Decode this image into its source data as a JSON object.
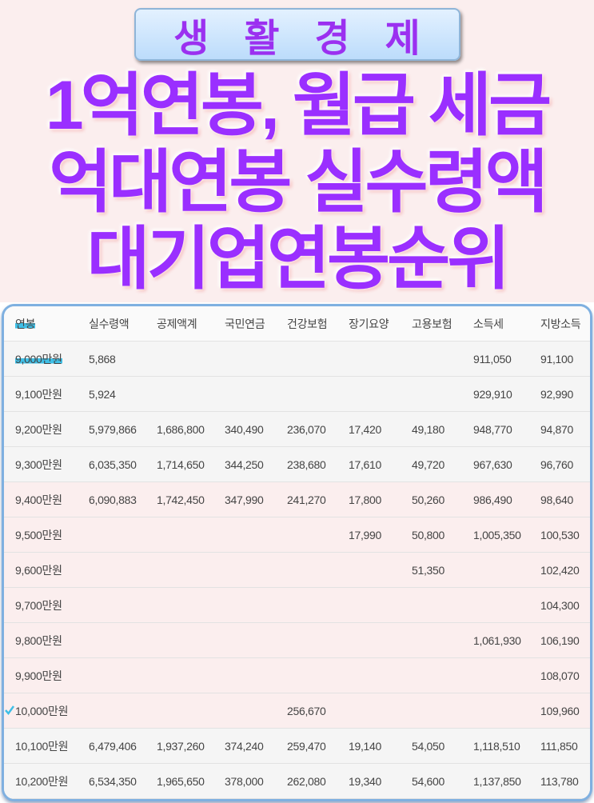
{
  "table": {
    "headers": [
      "연봉",
      "실수령액",
      "공제액계",
      "국민연금",
      "건강보험",
      "장기요양",
      "고용보험",
      "소득세",
      "지방소득"
    ],
    "rows": [
      [
        "9,000만원",
        "5,868",
        "",
        "",
        "",
        "",
        "",
        "911,050",
        "91,100"
      ],
      [
        "9,100만원",
        "5,924",
        "",
        "",
        "",
        "",
        "",
        "929,910",
        "92,990"
      ],
      [
        "9,200만원",
        "5,979,866",
        "1,686,800",
        "340,490",
        "236,070",
        "17,420",
        "49,180",
        "948,770",
        "94,870"
      ],
      [
        "9,300만원",
        "6,035,350",
        "1,714,650",
        "344,250",
        "238,680",
        "17,610",
        "49,720",
        "967,630",
        "96,760"
      ],
      [
        "9,400만원",
        "6,090,883",
        "1,742,450",
        "347,990",
        "241,270",
        "17,800",
        "50,260",
        "986,490",
        "98,640"
      ],
      [
        "9,500만원",
        "",
        "",
        "",
        "",
        "17,990",
        "50,800",
        "1,005,350",
        "100,530"
      ],
      [
        "9,600만원",
        "",
        "",
        "",
        "",
        "",
        "51,350",
        "",
        "102,420"
      ],
      [
        "9,700만원",
        "",
        "",
        "",
        "",
        "",
        "",
        "",
        "104,300"
      ],
      [
        "9,800만원",
        "",
        "",
        "",
        "",
        "",
        "",
        "1,061,930",
        "106,190"
      ],
      [
        "9,900만원",
        "",
        "",
        "",
        "",
        "",
        "",
        "",
        "108,070"
      ],
      [
        "10,000만원",
        "",
        "",
        "",
        "256,670",
        "",
        "",
        "",
        "109,960"
      ],
      [
        "10,100만원",
        "6,479,406",
        "1,937,260",
        "374,240",
        "259,470",
        "19,140",
        "54,050",
        "1,118,510",
        "111,850"
      ],
      [
        "10,200만원",
        "6,534,350",
        "1,965,650",
        "378,000",
        "262,080",
        "19,340",
        "54,600",
        "1,137,850",
        "113,780"
      ]
    ]
  },
  "overlay": {
    "banner": "생활경제",
    "line1": "1억연봉, 월급 세금",
    "line2": "억대연봉 실수령액",
    "line3": "대기업연봉순위"
  },
  "colors": {
    "accent": "#9a2fff",
    "highlight": "#3fbfe6",
    "frame": "#7fb0e0"
  }
}
